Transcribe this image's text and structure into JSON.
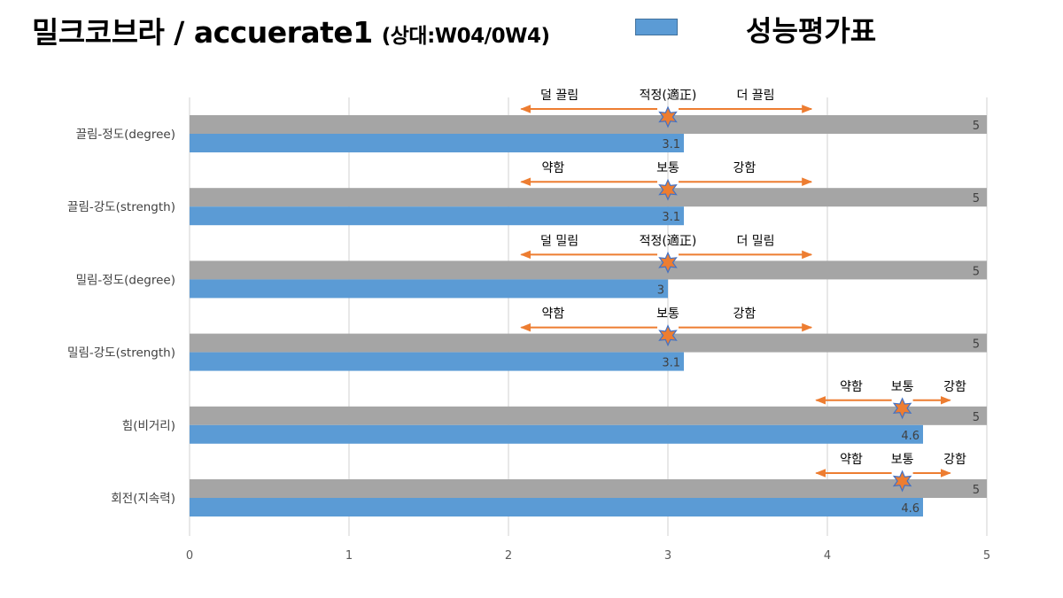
{
  "title": {
    "main": "밀크코브라 / accuerate1",
    "sub": "(상대:W04/0W4)"
  },
  "legend": {
    "label": "성능평가표",
    "color": "#5b9bd5"
  },
  "colors": {
    "reference_bar": "#a5a5a5",
    "value_bar": "#5b9bd5",
    "arrow": "#ed7d31",
    "grid": "#d9d9d9"
  },
  "chart_data": {
    "type": "bar",
    "orientation": "horizontal",
    "categories": [
      "끌림-정도(degree)",
      "끌림-강도(strength)",
      "밀림-정도(degree)",
      "밀림-강도(strength)",
      "힘(비거리)",
      "회전(지속력)"
    ],
    "series": [
      {
        "values": [
          5,
          5,
          5,
          5,
          5,
          5
        ]
      },
      {
        "name": "성능평가표",
        "values": [
          3.1,
          3.1,
          3,
          3.1,
          4.6,
          4.6
        ]
      }
    ],
    "data_labels": [
      [
        "5",
        "5",
        "5",
        "5",
        "5",
        "5"
      ],
      [
        "3.1",
        "3.1",
        "3",
        "3.1",
        "4.6",
        "4.6"
      ]
    ],
    "xlim": [
      0,
      5
    ],
    "x_ticks": [
      "0",
      "1",
      "2",
      "3",
      "4",
      "5"
    ],
    "grid": true,
    "annotations": [
      {
        "row": 0,
        "center": 3,
        "arrow": [
          2.08,
          3.9
        ],
        "left": "덜 끌림",
        "mid": "적정(適正)",
        "right": "더 끌림",
        "left_at": 2.32,
        "right_at": 3.55
      },
      {
        "row": 1,
        "center": 3,
        "arrow": [
          2.08,
          3.9
        ],
        "left": "약함",
        "mid": "보통",
        "right": "강함",
        "left_at": 2.28,
        "right_at": 3.48
      },
      {
        "row": 2,
        "center": 3,
        "arrow": [
          2.08,
          3.9
        ],
        "left": "덜 밀림",
        "mid": "적정(適正)",
        "right": "더 밀림",
        "left_at": 2.32,
        "right_at": 3.55
      },
      {
        "row": 3,
        "center": 3,
        "arrow": [
          2.08,
          3.9
        ],
        "left": "약함",
        "mid": "보통",
        "right": "강함",
        "left_at": 2.28,
        "right_at": 3.48
      },
      {
        "row": 4,
        "center": 4.47,
        "arrow": [
          3.93,
          4.77
        ],
        "left": "약함",
        "mid": "보통",
        "right": "강함",
        "left_at": 4.15,
        "right_at": 4.8
      },
      {
        "row": 5,
        "center": 4.47,
        "arrow": [
          3.93,
          4.77
        ],
        "left": "약함",
        "mid": "보통",
        "right": "강함",
        "left_at": 4.15,
        "right_at": 4.8
      }
    ]
  }
}
